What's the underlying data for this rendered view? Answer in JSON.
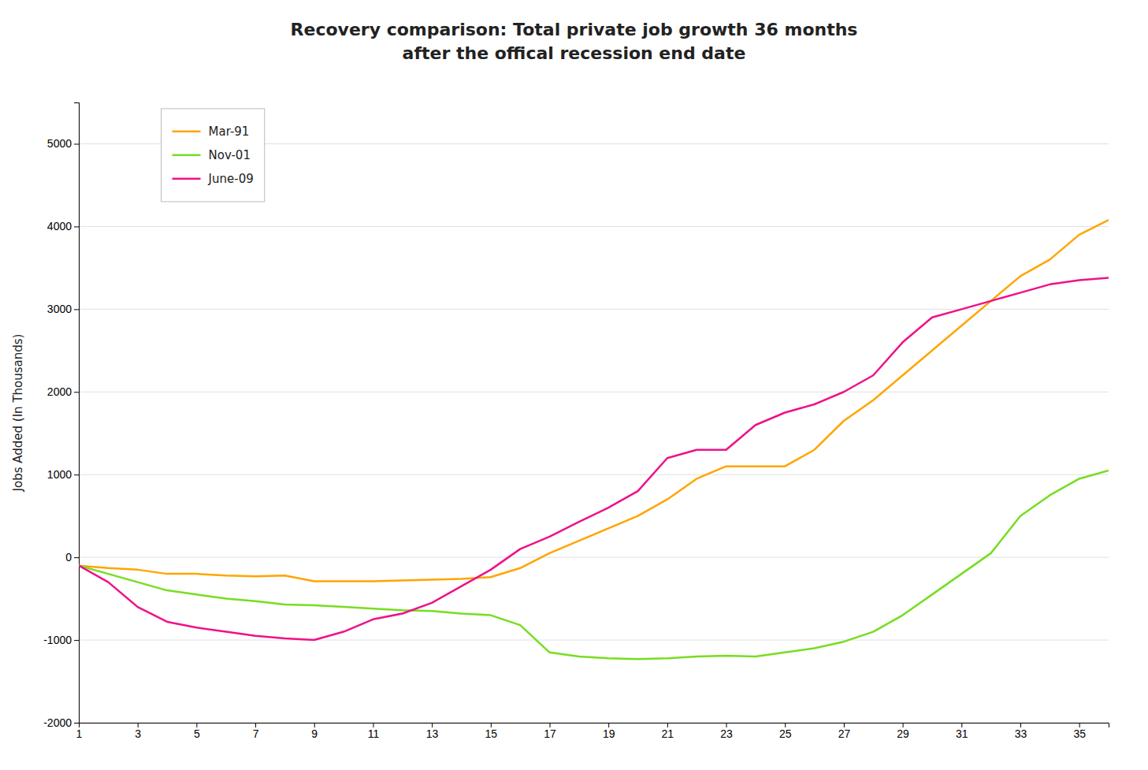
{
  "chart_data": {
    "type": "line",
    "title": "Recovery comparison: Total private job growth 36 months",
    "subtitle": "after the offical recession end date",
    "y_label": "Jobs Added (In Thousands)",
    "x": [
      1,
      2,
      3,
      4,
      5,
      6,
      7,
      8,
      9,
      10,
      11,
      12,
      13,
      14,
      15,
      16,
      17,
      18,
      19,
      20,
      21,
      22,
      23,
      24,
      25,
      26,
      27,
      28,
      29,
      30,
      31,
      32,
      33,
      34,
      35,
      36
    ],
    "series": [
      {
        "name": "Mar-91",
        "color": "#ffa500",
        "values": [
          -100,
          -130,
          -150,
          -200,
          -200,
          -220,
          -230,
          -220,
          -290,
          -290,
          -290,
          -280,
          -270,
          -260,
          -240,
          -130,
          50,
          200,
          350,
          500,
          700,
          950,
          1100,
          1100,
          1100,
          1300,
          1650,
          1900,
          2200,
          2500,
          2800,
          3100,
          3400,
          3600,
          3900,
          4080
        ]
      },
      {
        "name": "Nov-01",
        "color": "#77dd22",
        "values": [
          -100,
          -200,
          -300,
          -400,
          -450,
          -500,
          -530,
          -570,
          -580,
          -600,
          -620,
          -640,
          -650,
          -680,
          -700,
          -820,
          -1150,
          -1200,
          -1220,
          -1230,
          -1220,
          -1200,
          -1190,
          -1200,
          -1150,
          -1100,
          -1020,
          -900,
          -700,
          -450,
          -200,
          50,
          500,
          750,
          950,
          1050
        ]
      },
      {
        "name": "June-09",
        "color": "#ee1289",
        "values": [
          -100,
          -300,
          -600,
          -780,
          -850,
          -900,
          -950,
          -980,
          -1000,
          -900,
          -750,
          -680,
          -550,
          -350,
          -150,
          100,
          250,
          430,
          600,
          800,
          1200,
          1300,
          1300,
          1600,
          1750,
          1850,
          2000,
          2200,
          2600,
          2900,
          3000,
          3100,
          3200,
          3300,
          3350,
          3380
        ]
      }
    ],
    "xlim": [
      1,
      36
    ],
    "xticks": [
      1,
      3,
      5,
      7,
      9,
      11,
      13,
      15,
      17,
      19,
      21,
      23,
      25,
      27,
      29,
      31,
      33,
      35
    ],
    "ylim": [
      -2000,
      5500
    ],
    "yticks": [
      -2000,
      -1000,
      0,
      1000,
      2000,
      3000,
      4000,
      5000
    ],
    "grid": true,
    "legend": "upper left"
  }
}
